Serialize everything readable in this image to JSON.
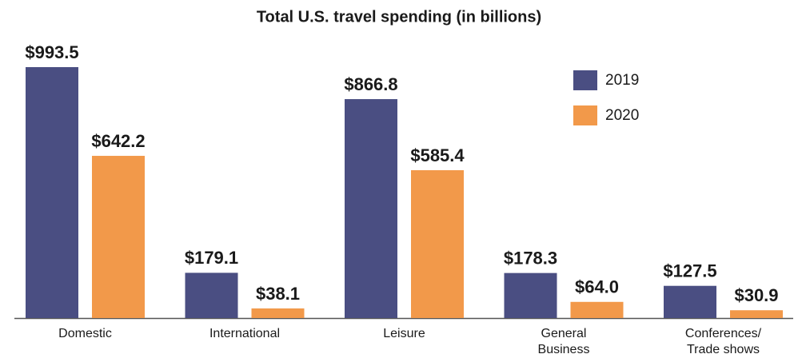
{
  "chart_data": {
    "type": "bar",
    "title": "Total U.S. travel spending (in billions)",
    "categories": [
      "Domestic",
      "International",
      "Leisure",
      "General Business",
      "Conferences/ Trade shows"
    ],
    "series": [
      {
        "name": "2019",
        "color": "#4a4e82",
        "values": [
          993.5,
          179.1,
          866.8,
          178.3,
          127.5
        ],
        "value_labels": [
          "$993.5",
          "$179.1",
          "$866.8",
          "$178.3",
          "$127.5"
        ]
      },
      {
        "name": "2020",
        "color": "#f2994a",
        "values": [
          642.2,
          38.1,
          585.4,
          64.0,
          30.9
        ],
        "value_labels": [
          "$642.2",
          "$38.1",
          "$585.4",
          "$64.0",
          "$30.9"
        ]
      }
    ],
    "legend": "upper right"
  }
}
